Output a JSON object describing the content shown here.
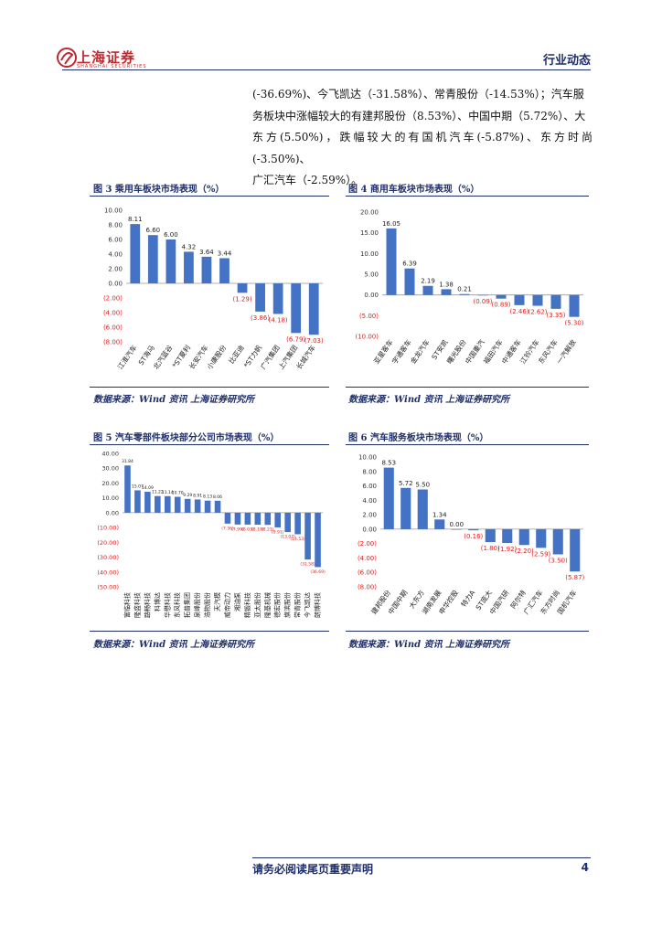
{
  "header": {
    "logo_text": "上海证券",
    "logo_sub": "SHANGHAI SECURITIES",
    "section_title": "行业动态"
  },
  "intro_lines": [
    "(-36.69%)、今飞凯达（-31.58%）、常青股份（-14.53%）；汽车服",
    "务板块中涨幅较大的有建邦股份（8.53%）、中国中期（5.72%）、大",
    "东方(5.50%)，跌幅较大的有国机汽车(-5.87%)、东方时尚(-3.50%)、",
    "广汇汽车（-2.59%）。"
  ],
  "figures": [
    {
      "title": "图 3 乘用车板块市场表现（%）",
      "source": "数据来源：Wind 资讯 上海证券研究所"
    },
    {
      "title": "图 4 商用车板块市场表现（%）",
      "source": "数据来源：Wind 资讯 上海证券研究所"
    },
    {
      "title": "图 5 汽车零部件板块部分公司市场表现（%）",
      "source": "数据来源：Wind 资讯 上海证券研究所"
    },
    {
      "title": "图 6 汽车服务板块市场表现（%）",
      "source": "数据来源：Wind 资讯 上海证券研究所"
    }
  ],
  "chart_data": [
    {
      "type": "bar",
      "ylim": [
        -8,
        10
      ],
      "ytick_labels": [
        "10.00",
        "8.00",
        "6.00",
        "4.00",
        "2.00",
        "0.00",
        "(2.00)",
        "(4.00)",
        "(6.00)",
        "(8.00)"
      ],
      "categories": [
        "江淮汽车",
        "ST海马",
        "北汽蓝谷",
        "*ST夏利",
        "长安汽车",
        "小康股份",
        "比亚迪",
        "*ST力帆",
        "广汽集团",
        "上汽集团",
        "长城汽车"
      ],
      "values": [
        8.11,
        6.6,
        6.0,
        4.32,
        3.64,
        3.44,
        -1.29,
        -3.86,
        -4.18,
        -6.79,
        -7.03
      ],
      "labels": [
        "8.11",
        "6.60",
        "6.00",
        "4.32",
        "3.64",
        "3.44",
        "(1.29)",
        "(3.86)",
        "(4.18)",
        "(6.79)",
        "(7.03)"
      ],
      "bar_color": "#4472c4",
      "neg_label_color": "#e02020"
    },
    {
      "type": "bar",
      "ylim": [
        -10,
        20
      ],
      "ytick_labels": [
        "20.00",
        "15.00",
        "10.00",
        "5.00",
        "0.00",
        "(5.00)",
        "(10.00)"
      ],
      "categories": [
        "亚星客车",
        "宇通客车",
        "金龙汽车",
        "ST安凯",
        "曙光股份",
        "中国重汽",
        "福田汽车",
        "中通客车",
        "江铃汽车",
        "东风汽车",
        "一汽解放"
      ],
      "values": [
        16.05,
        6.39,
        2.19,
        1.38,
        0.21,
        -0.09,
        -0.89,
        -2.46,
        -2.62,
        -3.35,
        -5.3
      ],
      "labels": [
        "16.05",
        "6.39",
        "2.19",
        "1.38",
        "0.21",
        "(0.09)",
        "(0.89)",
        "(2.46)",
        "(2.62)",
        "(3.35)",
        "(5.30)"
      ],
      "bar_color": "#4472c4",
      "neg_label_color": "#e02020"
    },
    {
      "type": "bar",
      "ylim": [
        -50,
        40
      ],
      "ytick_labels": [
        "40.00",
        "30.00",
        "20.00",
        "10.00",
        "0.00",
        "(10.00)",
        "(20.00)",
        "(30.00)",
        "(40.00)",
        "(50.00)"
      ],
      "categories": [
        "富临科技",
        "隆盛科技",
        "路畅科技",
        "科博达",
        "华懋科技",
        "东风科技",
        "拓普集团",
        "泉峰股份",
        "浩物股份",
        "天汽模",
        "威帝动力",
        "湘油泵",
        "精锻科技",
        "亚太股份",
        "隆基机械",
        "德宏股份",
        "旗滨股份",
        "常青股份",
        "今飞凯达",
        "朗博科技"
      ],
      "values": [
        31.84,
        15.07,
        14.09,
        11.22,
        11.14,
        10.7,
        9.29,
        8.91,
        8.13,
        8.06,
        -7.36,
        -7.99,
        -8.03,
        -8.1,
        -8.21,
        -9.91,
        -13.07,
        -14.53,
        -31.58,
        -36.69
      ],
      "labels": [
        "31.84",
        "15.07",
        "14.09",
        "11.22",
        "11.14",
        "10.70",
        "9.29",
        "8.91",
        "8.13",
        "8.06",
        "(7.36)",
        "(7.99)",
        "(8.03)",
        "(8.10)",
        "(8.21)",
        "(9.91)",
        "(13.07)",
        "(14.53)",
        "(31.58)",
        "(36.69)"
      ],
      "bar_color": "#4472c4",
      "neg_label_color": "#e02020"
    },
    {
      "type": "bar",
      "ylim": [
        -8,
        10
      ],
      "ytick_labels": [
        "10.00",
        "8.00",
        "6.00",
        "4.00",
        "2.00",
        "0.00",
        "(2.00)",
        "(4.00)",
        "(6.00)",
        "(8.00)"
      ],
      "categories": [
        "建邦股份",
        "中国中期",
        "大东方",
        "湖南发展",
        "申华控股",
        "特力A",
        "ST庞大",
        "中国汽研",
        "阿尔特",
        "广汇汽车",
        "东方时尚",
        "国机汽车"
      ],
      "values": [
        8.53,
        5.72,
        5.5,
        1.34,
        0.0,
        -0.16,
        -1.8,
        -1.92,
        -2.2,
        -2.59,
        -3.5,
        -5.87
      ],
      "labels": [
        "8.53",
        "5.72",
        "5.50",
        "1.34",
        "0.00",
        "(0.16)",
        "(1.80)",
        "(1.92)",
        "(2.20)",
        "(2.59)",
        "(3.50)",
        "(5.87)"
      ],
      "bar_color": "#4472c4",
      "neg_label_color": "#e02020"
    }
  ],
  "footer": {
    "disclaimer": "请务必阅读尾页重要声明",
    "page_number": "4"
  }
}
